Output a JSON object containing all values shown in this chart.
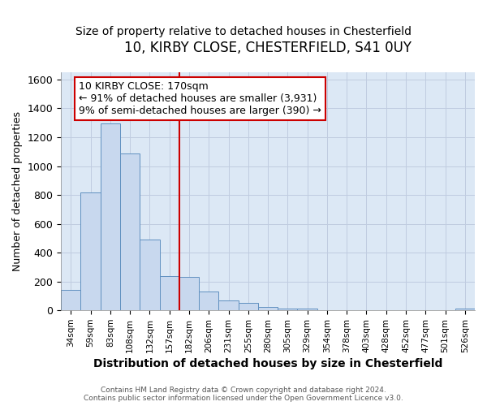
{
  "title1": "10, KIRBY CLOSE, CHESTERFIELD, S41 0UY",
  "title2": "Size of property relative to detached houses in Chesterfield",
  "xlabel": "Distribution of detached houses by size in Chesterfield",
  "ylabel": "Number of detached properties",
  "bin_labels": [
    "34sqm",
    "59sqm",
    "83sqm",
    "108sqm",
    "132sqm",
    "157sqm",
    "182sqm",
    "206sqm",
    "231sqm",
    "255sqm",
    "280sqm",
    "305sqm",
    "329sqm",
    "354sqm",
    "378sqm",
    "403sqm",
    "428sqm",
    "452sqm",
    "477sqm",
    "501sqm",
    "526sqm"
  ],
  "bar_heights": [
    140,
    815,
    1295,
    1090,
    490,
    235,
    230,
    130,
    70,
    50,
    25,
    15,
    15,
    0,
    0,
    0,
    0,
    0,
    0,
    0,
    15
  ],
  "bar_color": "#c8d8ee",
  "bar_edge_color": "#6090c0",
  "vline_color": "#cc0000",
  "annotation_text": "10 KIRBY CLOSE: 170sqm\n← 91% of detached houses are smaller (3,931)\n9% of semi-detached houses are larger (390) →",
  "annotation_box_color": "#ffffff",
  "annotation_box_edge": "#cc0000",
  "ylim": [
    0,
    1650
  ],
  "yticks": [
    0,
    200,
    400,
    600,
    800,
    1000,
    1200,
    1400,
    1600
  ],
  "fig_bg": "#ffffff",
  "plot_bg": "#dce8f5",
  "footer": "Contains HM Land Registry data © Crown copyright and database right 2024.\nContains public sector information licensed under the Open Government Licence v3.0.",
  "title1_fontsize": 12,
  "title2_fontsize": 10,
  "xlabel_fontsize": 10,
  "ylabel_fontsize": 9,
  "annotation_fontsize": 9
}
